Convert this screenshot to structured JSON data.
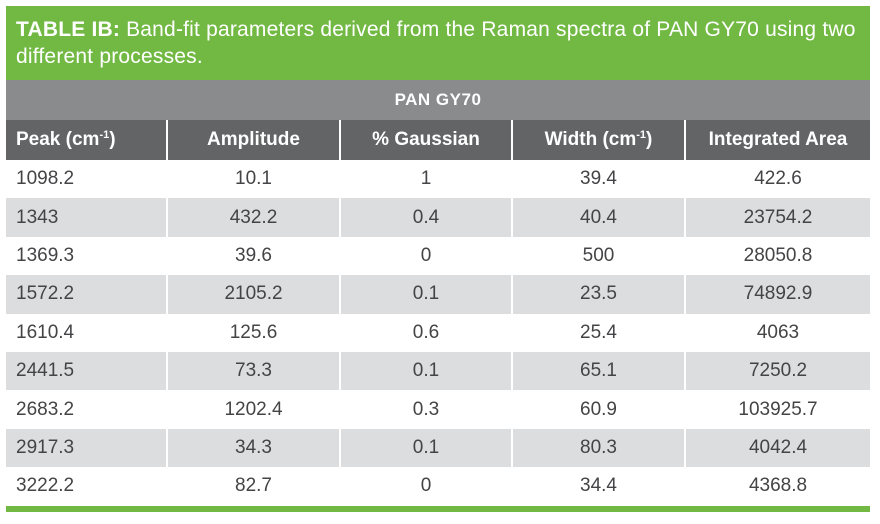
{
  "caption": {
    "label": "TABLE IB:",
    "text": " Band-fit parameters derived from the Raman spectra of PAN GY70 using two different processes."
  },
  "table": {
    "group_header": "PAN GY70",
    "columns": [
      {
        "label": "Peak (cm",
        "sup": "-1",
        "close": ")"
      },
      {
        "label": "Amplitude",
        "sup": "",
        "close": ""
      },
      {
        "label": "% Gaussian",
        "sup": "",
        "close": ""
      },
      {
        "label": "Width (cm",
        "sup": "-1",
        "close": ")"
      },
      {
        "label": "Integrated Area",
        "sup": "",
        "close": ""
      }
    ],
    "rows": [
      [
        "1098.2",
        "10.1",
        "1",
        "39.4",
        "422.6"
      ],
      [
        "1343",
        "432.2",
        "0.4",
        "40.4",
        "23754.2"
      ],
      [
        "1369.3",
        "39.6",
        "0",
        "500",
        "28050.8"
      ],
      [
        "1572.2",
        "2105.2",
        "0.1",
        "23.5",
        "74892.9"
      ],
      [
        "1610.4",
        "125.6",
        "0.6",
        "25.4",
        "4063"
      ],
      [
        "2441.5",
        "73.3",
        "0.1",
        "65.1",
        "7250.2"
      ],
      [
        "2683.2",
        "1202.4",
        "0.3",
        "60.9",
        "103925.7"
      ],
      [
        "2917.3",
        "34.3",
        "0.1",
        "80.3",
        "4042.4"
      ],
      [
        "3222.2",
        "82.7",
        "0",
        "34.4",
        "4368.8"
      ]
    ]
  },
  "colors": {
    "accent_green": "#72b944",
    "group_header_gray": "#8a8b8d",
    "column_header_gray": "#636466",
    "stripe_gray": "#dcdddf"
  }
}
